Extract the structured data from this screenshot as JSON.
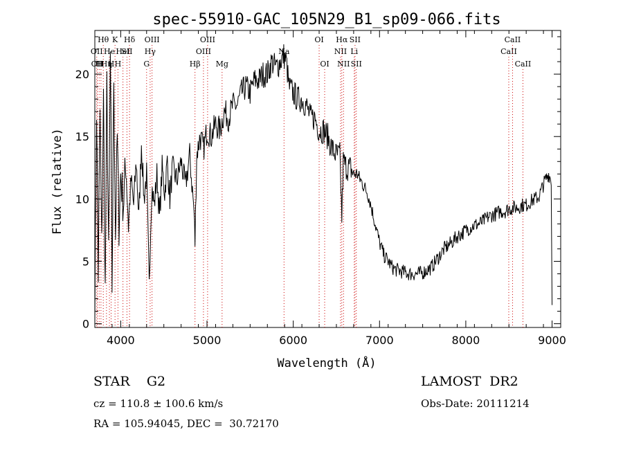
{
  "chart_data": {
    "type": "line",
    "title": "spec-55910-GAC_105N29_B1_sp09-066.fits",
    "xlabel": "Wavelength (Å)",
    "ylabel": "Flux (relative)",
    "xlim": [
      3700,
      9100
    ],
    "ylim": [
      -0.3,
      23.5
    ],
    "x_ticks": [
      4000,
      5000,
      6000,
      7000,
      8000,
      9000
    ],
    "y_ticks": [
      0,
      5,
      10,
      15,
      20
    ],
    "grid": false,
    "line_color": "#000000",
    "marker_color": "#cc0000",
    "series": [
      {
        "x": [
          3700,
          3720,
          3740,
          3760,
          3780,
          3800,
          3820,
          3840,
          3860,
          3880,
          3900,
          3920,
          3940,
          3960,
          3980,
          4000,
          4030,
          4060,
          4090,
          4120,
          4150,
          4180,
          4210,
          4240,
          4270,
          4300,
          4330,
          4340,
          4360,
          4390,
          4420,
          4450,
          4480,
          4510,
          4540,
          4570,
          4600,
          4650,
          4700,
          4750,
          4800,
          4850,
          4861,
          4880,
          4920,
          4960,
          5000,
          5050,
          5100,
          5150,
          5200,
          5250,
          5300,
          5350,
          5400,
          5450,
          5500,
          5550,
          5600,
          5650,
          5700,
          5750,
          5800,
          5850,
          5890,
          5920,
          5950,
          6000,
          6050,
          6100,
          6150,
          6200,
          6250,
          6300,
          6350,
          6400,
          6450,
          6500,
          6540,
          6563,
          6580,
          6620,
          6660,
          6700,
          6740,
          6780,
          6820,
          6860,
          6900,
          6950,
          7000,
          7050,
          7100,
          7150,
          7200,
          7250,
          7300,
          7350,
          7400,
          7450,
          7500,
          7550,
          7600,
          7650,
          7700,
          7750,
          7800,
          7850,
          7900,
          7950,
          8000,
          8050,
          8100,
          8150,
          8200,
          8250,
          8300,
          8350,
          8400,
          8450,
          8500,
          8550,
          8600,
          8650,
          8700,
          8750,
          8800,
          8850,
          8880,
          8920,
          8960,
          8990,
          9000
        ],
        "y": [
          0.5,
          17.5,
          4,
          17,
          6,
          18,
          2.5,
          19,
          5,
          21.5,
          3,
          20,
          7,
          15,
          8,
          12,
          9.5,
          13,
          8,
          11.5,
          9.5,
          13,
          8.5,
          14.5,
          10,
          12,
          3,
          6,
          11,
          9.5,
          12,
          8.5,
          12.5,
          10.5,
          13,
          10,
          12.5,
          11.5,
          13,
          11,
          13.5,
          9,
          6.5,
          13.5,
          15,
          14,
          15.5,
          15,
          16,
          15.5,
          17,
          16.5,
          17.5,
          17.5,
          18.5,
          19,
          18.5,
          19.5,
          19.5,
          20,
          20,
          21,
          20.5,
          21,
          21.5,
          21,
          19,
          18.5,
          18,
          18,
          17.5,
          16.5,
          16.5,
          15.5,
          15.5,
          15,
          14,
          13.5,
          13.5,
          8.5,
          13,
          12.5,
          12.5,
          12,
          12,
          11.5,
          11,
          10.5,
          9.5,
          8,
          6.5,
          5.5,
          5,
          4.5,
          4.3,
          4.2,
          4.1,
          4,
          4,
          4,
          4.1,
          4.3,
          4.5,
          5,
          5.5,
          6,
          6.3,
          6.6,
          7,
          7.2,
          7.5,
          7.7,
          7.9,
          8,
          8.2,
          8.5,
          8.7,
          8.8,
          9,
          9,
          9.2,
          9.3,
          9.3,
          9.5,
          9.5,
          9.8,
          10,
          10.2,
          10.8,
          11.5,
          12,
          11.5,
          1.5
        ]
      }
    ],
    "line_markers": [
      {
        "wl": 3722,
        "label": "OII",
        "row": 1
      },
      {
        "wl": 3728,
        "label": "OII",
        "row": 2
      },
      {
        "wl": 3750,
        "label": "H",
        "row": 2
      },
      {
        "wl": 3771,
        "label": "H",
        "row": 2
      },
      {
        "wl": 3798,
        "label": "Hθ",
        "row": 0
      },
      {
        "wl": 3835,
        "label": "Hη",
        "row": 2
      },
      {
        "wl": 3869,
        "label": "He",
        "row": 1
      },
      {
        "wl": 3889,
        "label": "H",
        "row": 2
      },
      {
        "wl": 3934,
        "label": "K",
        "row": 0
      },
      {
        "wl": 3968,
        "label": "H",
        "row": 2
      },
      {
        "wl": 4026,
        "label": "HeI",
        "row": 1
      },
      {
        "wl": 4072,
        "label": "SII",
        "row": 1
      },
      {
        "wl": 4102,
        "label": "Hδ",
        "row": 0
      },
      {
        "wl": 4300,
        "label": "G",
        "row": 2
      },
      {
        "wl": 4341,
        "label": "Hγ",
        "row": 1
      },
      {
        "wl": 4363,
        "label": "OIII",
        "row": 0
      },
      {
        "wl": 4861,
        "label": "Hβ",
        "row": 2
      },
      {
        "wl": 4959,
        "label": "OIII",
        "row": 1
      },
      {
        "wl": 5007,
        "label": "OIII",
        "row": 0
      },
      {
        "wl": 5175,
        "label": "Mg",
        "row": 2
      },
      {
        "wl": 5893,
        "label": "Na",
        "row": 1
      },
      {
        "wl": 6300,
        "label": "OI",
        "row": 0
      },
      {
        "wl": 6364,
        "label": "OI",
        "row": 2
      },
      {
        "wl": 6548,
        "label": "NII",
        "row": 1
      },
      {
        "wl": 6563,
        "label": "Hα",
        "row": 0
      },
      {
        "wl": 6583,
        "label": "NII",
        "row": 2
      },
      {
        "wl": 6707,
        "label": "Li",
        "row": 1
      },
      {
        "wl": 6716,
        "label": "SII",
        "row": 0
      },
      {
        "wl": 6731,
        "label": "SII",
        "row": 2
      },
      {
        "wl": 8498,
        "label": "CaII",
        "row": 1
      },
      {
        "wl": 8542,
        "label": "CaII",
        "row": 0
      },
      {
        "wl": 8662,
        "label": "CaII",
        "row": 2
      }
    ]
  },
  "info": {
    "object_class": "STAR    G2",
    "survey": "LAMOST  DR2",
    "redshift": "cz = 110.8 ± 100.6 km/s",
    "obs_date": "Obs-Date: 20111214",
    "coords": "RA = 105.94045, DEC =  30.72170"
  }
}
